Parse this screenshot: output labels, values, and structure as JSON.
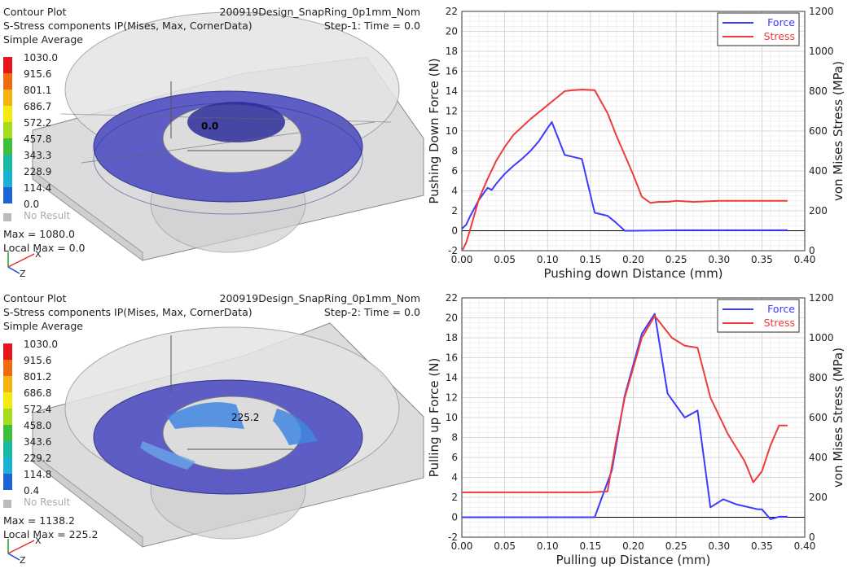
{
  "contour_panels": [
    {
      "title": "Contour Plot",
      "model_name": "200919Design_SnapRing_0p1mm_Nom",
      "variable": "S-Stress components IP(Mises, Max, CornerData)",
      "step": "Step-1:  Time = 0.0",
      "averaging": "Simple Average",
      "legend_values": [
        "1030.0",
        "915.6",
        "801.1",
        "686.7",
        "572.2",
        "457.8",
        "343.3",
        "228.9",
        "114.4",
        "0.0"
      ],
      "legend_colors": [
        "#e8141b",
        "#f26a10",
        "#f4b40e",
        "#f2ea12",
        "#a6dc1c",
        "#3fbe37",
        "#17b9a0",
        "#1ab1d9",
        "#1d63d6",
        "#1323b8"
      ],
      "no_result": "No Result",
      "max_text": "Max = 1080.0",
      "local_max_text": "Local Max = 0.0",
      "probe_label": "0.0",
      "axis_x": "X",
      "axis_z": "Z"
    },
    {
      "title": "Contour Plot",
      "model_name": "200919Design_SnapRing_0p1mm_Nom",
      "variable": "S-Stress components IP(Mises, Max, CornerData)",
      "step": "Step-2:  Time = 0.0",
      "averaging": "Simple Average",
      "legend_values": [
        "1030.0",
        "915.6",
        "801.2",
        "686.8",
        "572.4",
        "458.0",
        "343.6",
        "229.2",
        "114.8",
        "0.4"
      ],
      "legend_colors": [
        "#e8141b",
        "#f26a10",
        "#f4b40e",
        "#f2ea12",
        "#a6dc1c",
        "#3fbe37",
        "#17b9a0",
        "#1ab1d9",
        "#1d63d6",
        "#1323b8"
      ],
      "no_result": "No Result",
      "max_text": "Max = 1138.2",
      "local_max_text": "Local Max = 225.2",
      "probe_label": "225.2",
      "axis_x": "X",
      "axis_z": "Z"
    }
  ],
  "chart_data": [
    {
      "type": "line",
      "xlabel": "Pushing down Distance (mm)",
      "ylabel": "Pushing Down Force (N)",
      "y2label": "von Mises Stress (MPa)",
      "xlim": [
        0,
        0.4
      ],
      "ylim": [
        -2,
        22
      ],
      "y2lim": [
        0,
        1200
      ],
      "xticks": [
        "0.00",
        "0.05",
        "0.10",
        "0.15",
        "0.20",
        "0.25",
        "0.30",
        "0.35",
        "0.40"
      ],
      "yticks": [
        "-2",
        "0",
        "2",
        "4",
        "6",
        "8",
        "10",
        "12",
        "14",
        "16",
        "18",
        "20",
        "22"
      ],
      "y2ticks": [
        "0",
        "200",
        "400",
        "600",
        "800",
        "1000",
        "1200"
      ],
      "grid": true,
      "legend_position": "top-right",
      "series": [
        {
          "name": "Force",
          "axis": "left",
          "color": "#3b3bff",
          "x": [
            0,
            0.005,
            0.01,
            0.02,
            0.03,
            0.035,
            0.04,
            0.05,
            0.06,
            0.07,
            0.08,
            0.09,
            0.1,
            0.105,
            0.12,
            0.13,
            0.14,
            0.155,
            0.17,
            0.18,
            0.19,
            0.2,
            0.25,
            0.3,
            0.35,
            0.38
          ],
          "y": [
            0.2,
            0.6,
            1.5,
            3.1,
            4.3,
            4.1,
            4.7,
            5.7,
            6.5,
            7.2,
            8.0,
            9.0,
            10.3,
            10.9,
            7.6,
            7.4,
            7.2,
            1.8,
            1.5,
            0.8,
            0.0,
            0.0,
            0.05,
            0.05,
            0.05,
            0.05
          ]
        },
        {
          "name": "Stress",
          "axis": "right",
          "color": "#ee3b3b",
          "x": [
            0.001,
            0.005,
            0.01,
            0.02,
            0.03,
            0.04,
            0.05,
            0.06,
            0.08,
            0.1,
            0.12,
            0.13,
            0.14,
            0.155,
            0.17,
            0.18,
            0.19,
            0.2,
            0.21,
            0.22,
            0.23,
            0.24,
            0.25,
            0.27,
            0.3,
            0.35,
            0.38
          ],
          "y": [
            5,
            40,
            110,
            260,
            360,
            450,
            520,
            580,
            660,
            730,
            800,
            805,
            808,
            805,
            690,
            580,
            480,
            380,
            270,
            240,
            245,
            245,
            250,
            245,
            250,
            250,
            250
          ]
        }
      ]
    },
    {
      "type": "line",
      "xlabel": "Pulling up Distance (mm)",
      "ylabel": "Pulling up Force (N)",
      "y2label": "von Mises Stress (MPa)",
      "xlim": [
        0,
        0.4
      ],
      "ylim": [
        -2,
        22
      ],
      "y2lim": [
        0,
        1200
      ],
      "xticks": [
        "0.00",
        "0.05",
        "0.10",
        "0.15",
        "0.20",
        "0.25",
        "0.30",
        "0.35",
        "0.40"
      ],
      "yticks": [
        "-2",
        "0",
        "2",
        "4",
        "6",
        "8",
        "10",
        "12",
        "14",
        "16",
        "18",
        "20",
        "22"
      ],
      "y2ticks": [
        "0",
        "200",
        "400",
        "600",
        "800",
        "1000",
        "1200"
      ],
      "grid": true,
      "legend_position": "top-right",
      "series": [
        {
          "name": "Force",
          "axis": "left",
          "color": "#3b3bff",
          "x": [
            0,
            0.05,
            0.1,
            0.155,
            0.175,
            0.19,
            0.21,
            0.225,
            0.24,
            0.26,
            0.275,
            0.29,
            0.305,
            0.32,
            0.345,
            0.35,
            0.36,
            0.37,
            0.38
          ],
          "y": [
            0,
            0,
            0,
            0,
            4.7,
            12.2,
            18.4,
            20.4,
            12.4,
            10.0,
            10.7,
            1.0,
            1.8,
            1.3,
            0.8,
            0.8,
            -0.2,
            0.05,
            0.05
          ]
        },
        {
          "name": "Stress",
          "axis": "right",
          "color": "#ee3b3b",
          "x": [
            0,
            0.05,
            0.1,
            0.15,
            0.17,
            0.18,
            0.19,
            0.21,
            0.225,
            0.245,
            0.26,
            0.275,
            0.29,
            0.31,
            0.33,
            0.34,
            0.35,
            0.36,
            0.37,
            0.38
          ],
          "y": [
            225,
            225,
            225,
            225,
            230,
            480,
            700,
            1000,
            1110,
            1000,
            960,
            950,
            700,
            520,
            380,
            275,
            330,
            460,
            560,
            560
          ]
        }
      ]
    }
  ]
}
